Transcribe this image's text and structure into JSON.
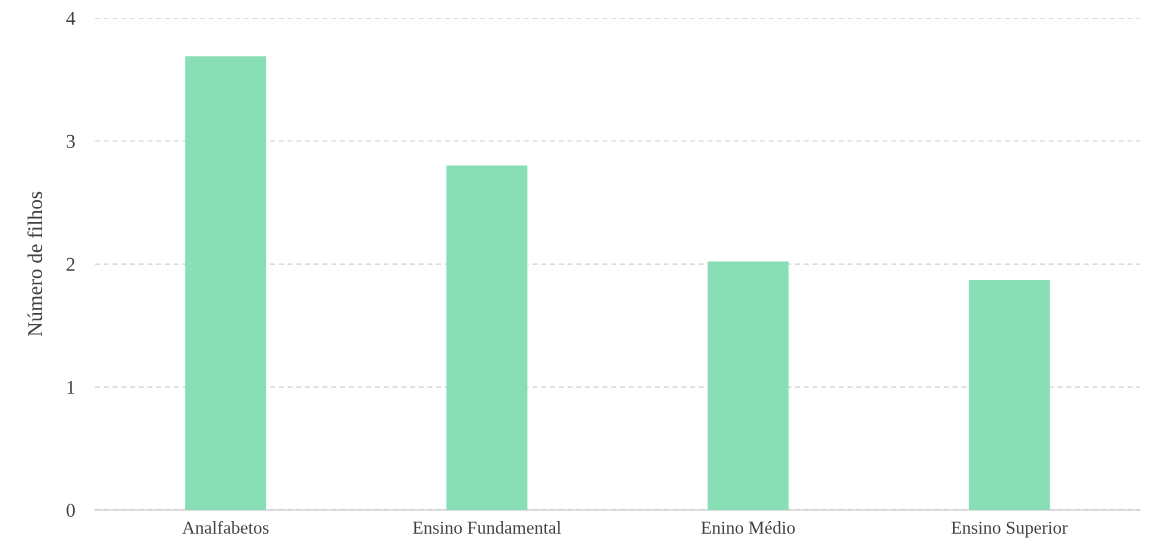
{
  "chart_data": {
    "type": "bar",
    "ylabel": "Número de filhos",
    "categories": [
      "Analfabetos",
      "Ensino Fundamental",
      "Enino Médio",
      "Ensino Superior"
    ],
    "values": [
      3.69,
      2.8,
      2.02,
      1.87
    ],
    "color": "#88dfb5",
    "ylim": [
      0,
      4
    ],
    "yticks": [
      0,
      1,
      2,
      3,
      4
    ],
    "grid": "y"
  }
}
